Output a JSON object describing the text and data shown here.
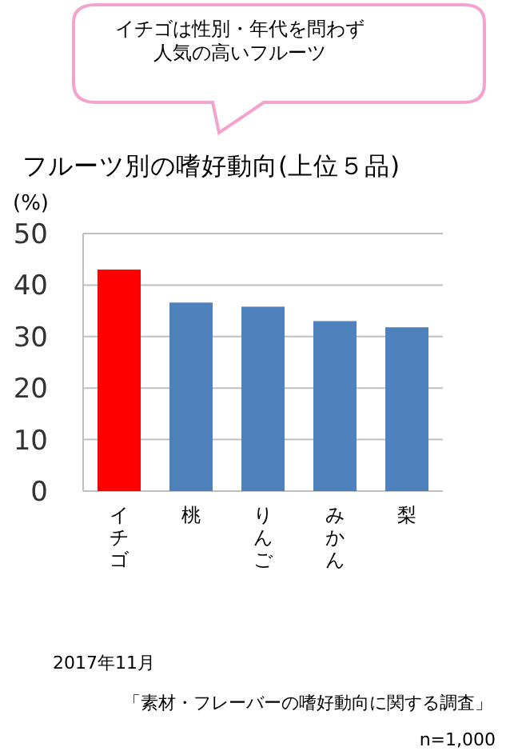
{
  "chart_data": {
    "type": "bar",
    "title": "フルーツ別の嗜好動向(上位５品)",
    "ylabel": "(%)",
    "categories": [
      "イチゴ",
      "桃",
      "りんご",
      "みかん",
      "梨"
    ],
    "values": [
      43,
      36.6,
      35.8,
      33,
      31.8
    ],
    "colors": [
      "#ff0000",
      "#4f81bd",
      "#4f81bd",
      "#4f81bd",
      "#4f81bd"
    ],
    "ylim": [
      0,
      50
    ],
    "yticks": [
      0,
      10,
      20,
      30,
      40,
      50
    ],
    "grid": "y",
    "annotations": [
      "イチゴは性別・年代を問わず",
      "人気の高いフルーツ",
      "2017年11月",
      "「素材・フレーバーの嗜好動向に関する調査」",
      "n=1,000"
    ]
  }
}
